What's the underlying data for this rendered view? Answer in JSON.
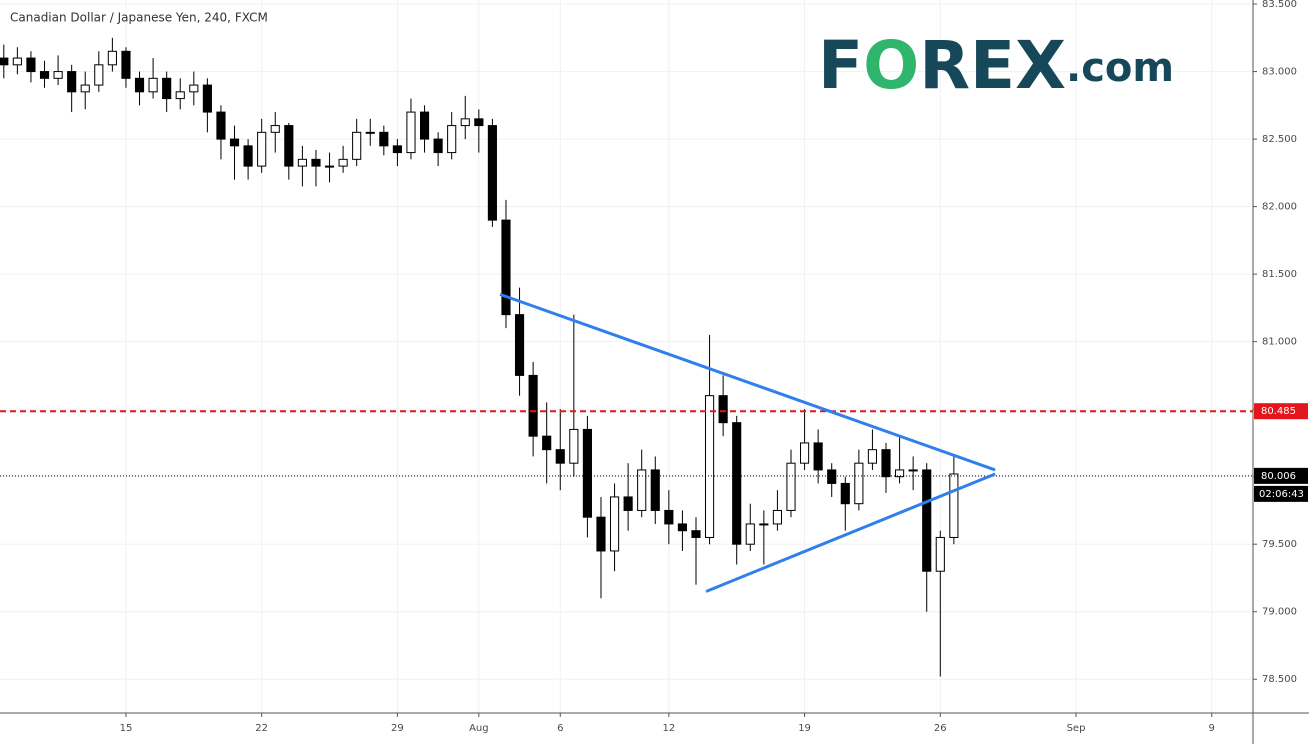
{
  "chart_data": {
    "type": "candlestick",
    "title": "Canadian Dollar / Japanese Yen, 240, FXCM",
    "logo": [
      "F",
      "O",
      "REX",
      ".com"
    ],
    "x": [
      -4.5,
      -4,
      -3.5,
      -3,
      -2.5,
      -2,
      -1.5,
      -1,
      -0.5,
      0,
      0.5,
      1,
      1.5,
      2,
      2.5,
      3,
      3.5,
      4,
      4.5,
      5,
      5.5,
      6,
      6.5,
      7,
      7.5,
      8,
      8.5,
      9,
      9.5,
      10,
      10.5,
      11,
      11.5,
      12,
      12.5,
      13,
      13.5,
      14,
      14.5,
      15,
      15.5,
      16,
      16.5,
      17,
      17.5,
      18,
      18.5,
      19,
      19.5,
      20,
      20.5,
      21,
      21.5,
      22,
      22.5,
      23,
      23.5,
      24,
      24.5,
      25,
      25.5,
      26,
      26.5,
      27,
      27.5,
      28,
      28.5,
      29,
      29.5,
      30,
      30.5
    ],
    "open": [
      83.1,
      83.05,
      83.1,
      83.0,
      82.95,
      83.0,
      82.85,
      82.9,
      83.05,
      83.15,
      82.95,
      82.85,
      82.95,
      82.8,
      82.85,
      82.9,
      82.7,
      82.5,
      82.45,
      82.3,
      82.55,
      82.6,
      82.3,
      82.35,
      82.3,
      82.3,
      82.35,
      82.55,
      82.55,
      82.45,
      82.4,
      82.7,
      82.5,
      82.4,
      82.6,
      82.65,
      82.6,
      81.9,
      81.2,
      80.75,
      80.3,
      80.2,
      80.1,
      80.35,
      79.7,
      79.45,
      79.85,
      79.75,
      80.05,
      79.75,
      79.65,
      79.6,
      79.55,
      80.6,
      80.4,
      79.5,
      79.65,
      79.65,
      79.75,
      80.1,
      80.25,
      80.05,
      79.95,
      79.8,
      80.1,
      80.2,
      80.0,
      80.05,
      80.05,
      79.3,
      79.55
    ],
    "high": [
      83.2,
      83.18,
      83.15,
      83.08,
      83.12,
      83.05,
      83.0,
      83.15,
      83.25,
      83.18,
      83.0,
      83.1,
      83.0,
      82.95,
      83.0,
      82.95,
      82.75,
      82.6,
      82.5,
      82.65,
      82.7,
      82.62,
      82.45,
      82.42,
      82.4,
      82.45,
      82.65,
      82.65,
      82.6,
      82.5,
      82.8,
      82.75,
      82.55,
      82.7,
      82.82,
      82.72,
      82.65,
      82.05,
      81.4,
      80.85,
      80.55,
      80.5,
      81.2,
      80.45,
      79.85,
      79.95,
      80.1,
      80.2,
      80.15,
      79.9,
      79.75,
      79.7,
      81.05,
      80.75,
      80.45,
      79.8,
      79.75,
      79.9,
      80.2,
      80.5,
      80.35,
      80.1,
      80.0,
      80.2,
      80.35,
      80.25,
      80.3,
      80.15,
      80.1,
      79.6,
      80.15
    ],
    "low": [
      82.95,
      82.98,
      82.92,
      82.88,
      82.9,
      82.7,
      82.72,
      82.85,
      83.0,
      82.88,
      82.75,
      82.8,
      82.7,
      82.72,
      82.75,
      82.55,
      82.35,
      82.2,
      82.2,
      82.25,
      82.4,
      82.2,
      82.15,
      82.15,
      82.18,
      82.25,
      82.3,
      82.45,
      82.38,
      82.3,
      82.35,
      82.4,
      82.3,
      82.35,
      82.5,
      82.4,
      81.85,
      81.1,
      80.6,
      80.15,
      79.95,
      79.9,
      80.0,
      79.55,
      79.1,
      79.3,
      79.6,
      79.7,
      79.65,
      79.5,
      79.45,
      79.2,
      79.5,
      80.3,
      79.35,
      79.45,
      79.35,
      79.6,
      79.7,
      80.05,
      79.95,
      79.85,
      79.6,
      79.75,
      80.05,
      79.88,
      79.95,
      79.9,
      79.0,
      78.52,
      79.5
    ],
    "close": [
      83.05,
      83.1,
      83.0,
      82.95,
      83.0,
      82.85,
      82.9,
      83.05,
      83.15,
      82.95,
      82.85,
      82.95,
      82.8,
      82.85,
      82.9,
      82.7,
      82.5,
      82.45,
      82.3,
      82.55,
      82.6,
      82.3,
      82.35,
      82.3,
      82.3,
      82.35,
      82.55,
      82.55,
      82.45,
      82.4,
      82.7,
      82.5,
      82.4,
      82.6,
      82.65,
      82.6,
      81.9,
      81.2,
      80.75,
      80.3,
      80.2,
      80.1,
      80.35,
      79.7,
      79.45,
      79.85,
      79.75,
      80.05,
      79.75,
      79.65,
      79.6,
      79.55,
      80.6,
      80.4,
      79.5,
      79.65,
      79.65,
      79.75,
      80.1,
      80.25,
      80.05,
      79.95,
      79.8,
      80.1,
      80.2,
      80.0,
      80.05,
      80.05,
      79.3,
      79.55,
      80.02
    ],
    "up_color": "#ffffff",
    "down_color": "#000000",
    "xlim": [
      -4.64,
      41.52
    ],
    "ylim": [
      78.25,
      83.53
    ],
    "xticks": [
      {
        "value": 0,
        "label": "15"
      },
      {
        "value": 5,
        "label": "22"
      },
      {
        "value": 10,
        "label": "29"
      },
      {
        "value": 13,
        "label": "Aug"
      },
      {
        "value": 16,
        "label": "6"
      },
      {
        "value": 20,
        "label": "12"
      },
      {
        "value": 25,
        "label": "19"
      },
      {
        "value": 30,
        "label": "26"
      },
      {
        "value": 35,
        "label": "Sep"
      },
      {
        "value": 40,
        "label": "9"
      }
    ],
    "yticks": [
      {
        "value": 78.5,
        "label": "78.500"
      },
      {
        "value": 79.0,
        "label": "79.000"
      },
      {
        "value": 79.5,
        "label": "79.500"
      },
      {
        "value": 80.0,
        "label": "80.000"
      },
      {
        "value": 80.5,
        "label": "80.500"
      },
      {
        "value": 81.0,
        "label": "81.000"
      },
      {
        "value": 81.5,
        "label": "81.500"
      },
      {
        "value": 82.0,
        "label": "82.000"
      },
      {
        "value": 82.5,
        "label": "82.500"
      },
      {
        "value": 83.0,
        "label": "83.000"
      },
      {
        "value": 83.5,
        "label": "83.500"
      }
    ],
    "grid": true,
    "trendlines": [
      {
        "color": "#2f80ed",
        "x": [
          13.78,
          32.02
        ],
        "y": [
          81.35,
          80.05
        ]
      },
      {
        "color": "#2f80ed",
        "x": [
          21.37,
          32.02
        ],
        "y": [
          79.15,
          80.02
        ]
      }
    ],
    "hlines": [
      {
        "value": 80.485,
        "label": "80.485",
        "color": "#e3161b",
        "style": "dashed"
      },
      {
        "value": 80.006,
        "label": "80.006",
        "color": "#000000",
        "style": "dotted"
      }
    ],
    "countdown": "02:06:43"
  }
}
